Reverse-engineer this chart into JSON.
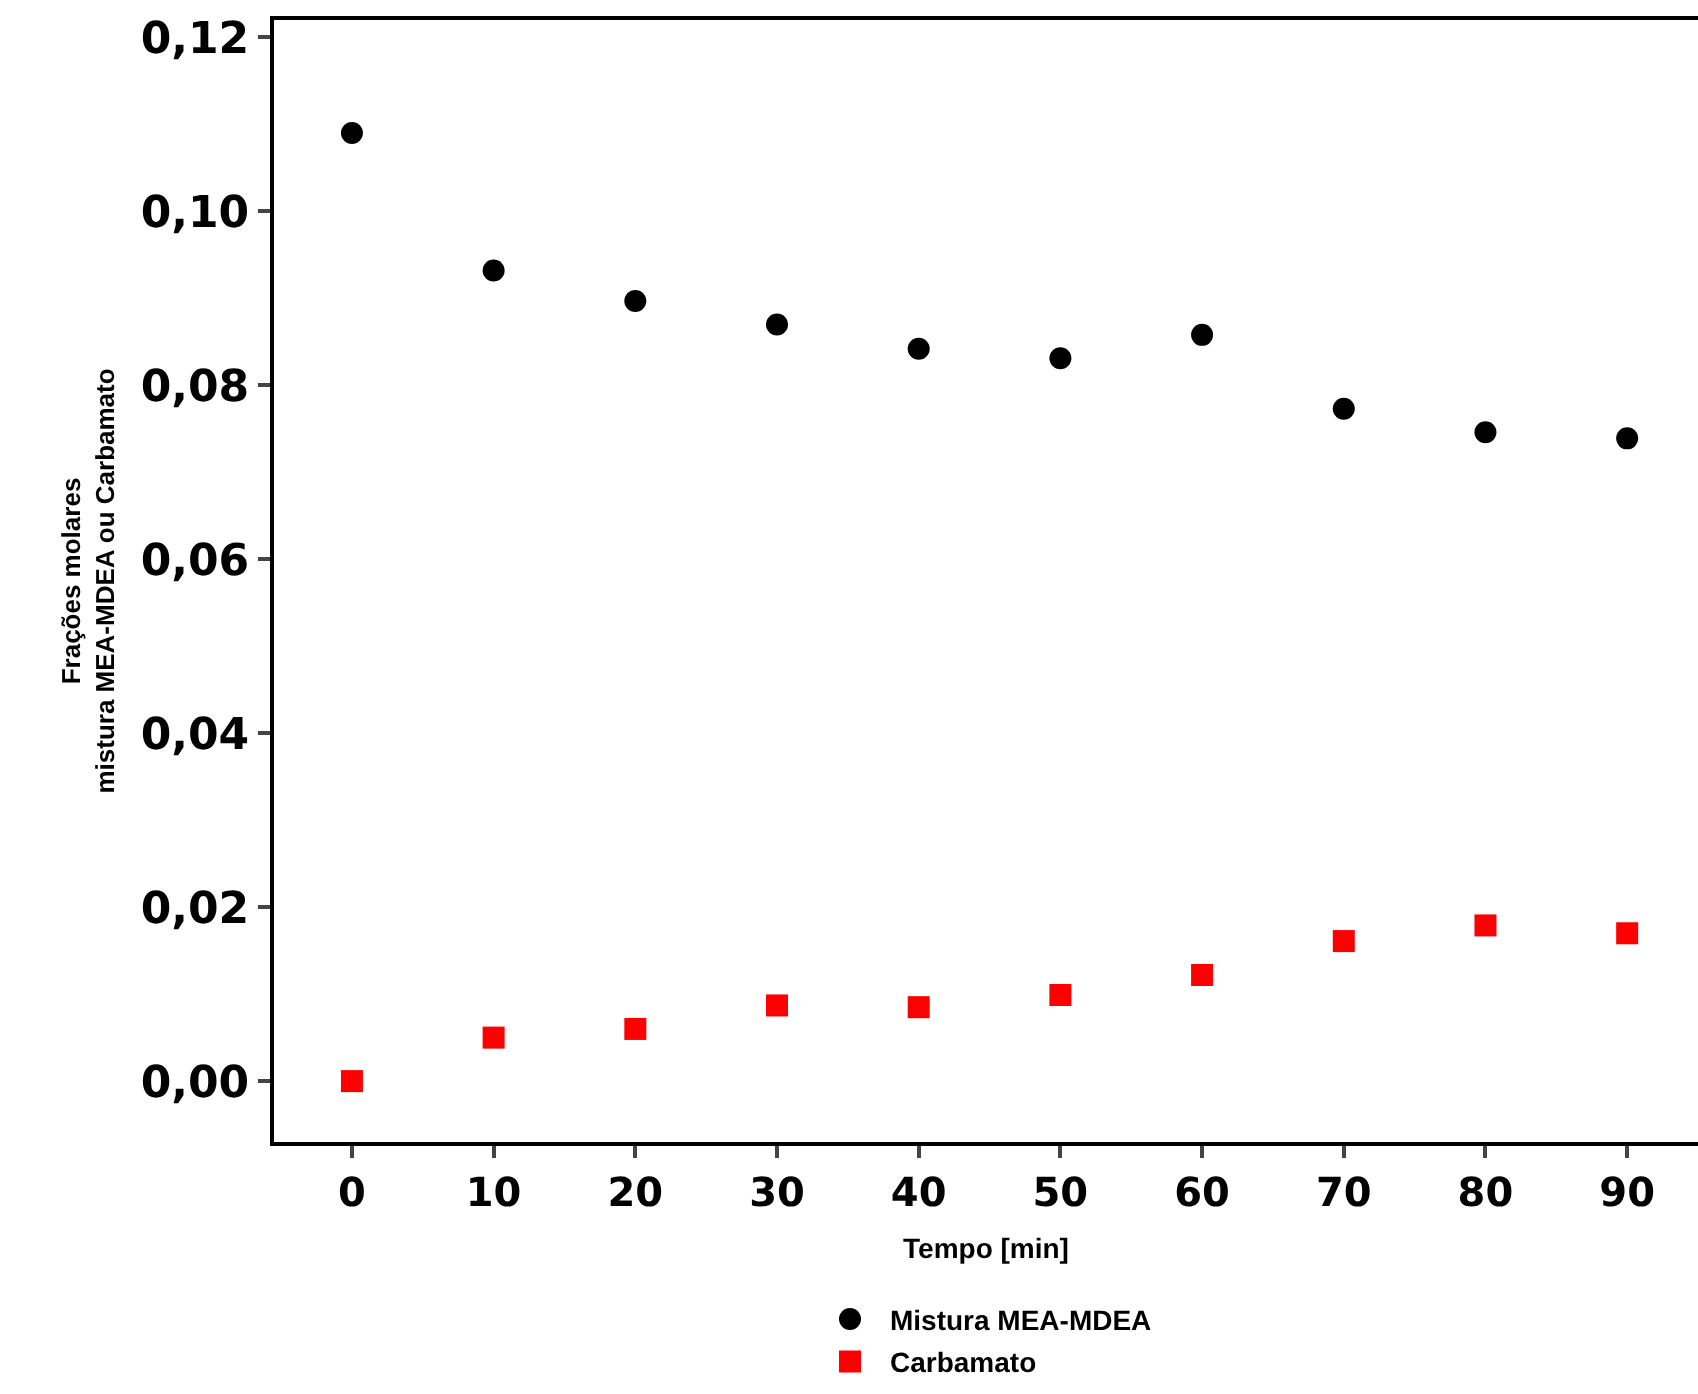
{
  "chart_data": {
    "type": "scatter",
    "xlabel": "Tempo [min]",
    "ylabel": "Frações molares\nmistura MEA-MDEA ou Carbamato",
    "x": [
      0,
      10,
      20,
      30,
      40,
      50,
      60,
      70,
      80,
      90
    ],
    "series": [
      {
        "name": "Mistura MEA-MDEA",
        "color": "#000000",
        "marker": "circle",
        "values": [
          0.109,
          0.0932,
          0.0897,
          0.087,
          0.0842,
          0.0831,
          0.0858,
          0.0773,
          0.0746,
          0.0739
        ]
      },
      {
        "name": "Carbamato",
        "color": "#ff0000",
        "marker": "square",
        "values": [
          0.0,
          0.005,
          0.006,
          0.0087,
          0.0085,
          0.0099,
          0.0122,
          0.0161,
          0.0179,
          0.017
        ]
      }
    ],
    "xlim": [
      -5.5,
      95
    ],
    "xticks": [
      0,
      10,
      20,
      30,
      40,
      50,
      60,
      70,
      80,
      90
    ],
    "ylim": [
      -0.007,
      0.122
    ],
    "yticks": [
      {
        "value": 0,
        "label": "0,00"
      },
      {
        "value": 0.02,
        "label": "0,02"
      },
      {
        "value": 0.04,
        "label": "0,04"
      },
      {
        "value": 0.06,
        "label": "0,06"
      },
      {
        "value": 0.08,
        "label": "0,08"
      },
      {
        "value": 0.1,
        "label": "0,10"
      },
      {
        "value": 0.12,
        "label": "0,12"
      }
    ],
    "grid": false,
    "legend": "bottom"
  }
}
